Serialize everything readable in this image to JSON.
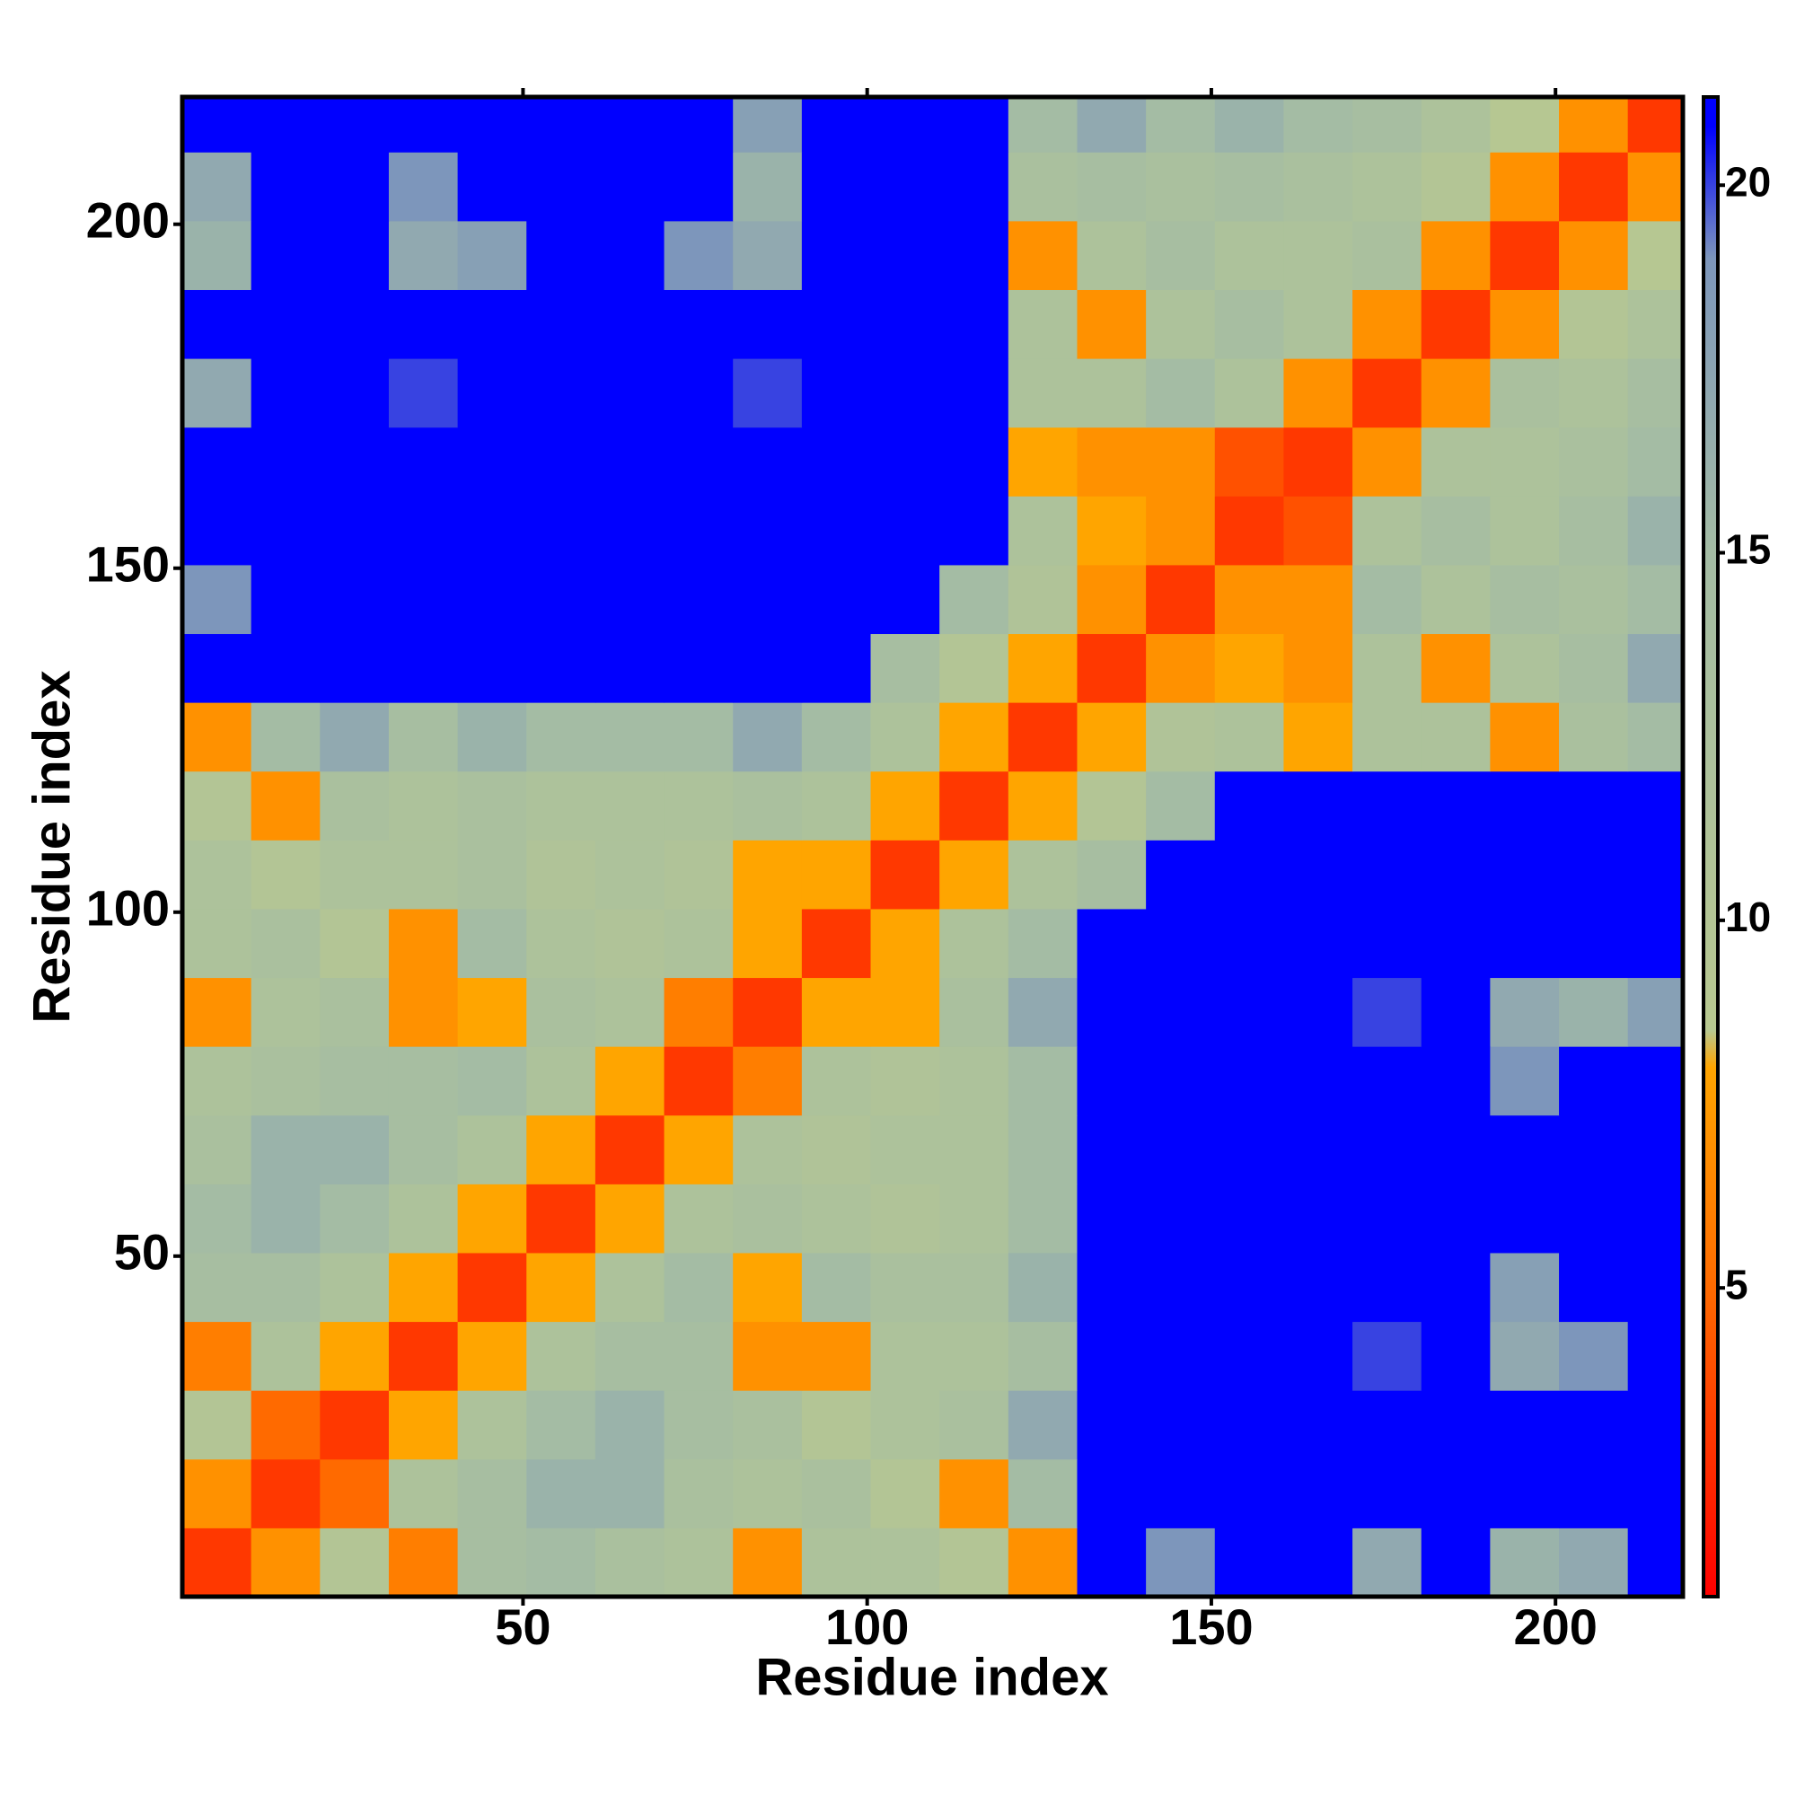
{
  "chart_data": {
    "type": "heatmap",
    "x_label": "Residue index",
    "y_label": "Residue index",
    "x_edges": [
      0.5,
      10.5,
      20.5,
      30.5,
      40.5,
      50.5,
      60.5,
      70.5,
      80.5,
      90.5,
      100.5,
      110.5,
      120.5,
      130.5,
      140.5,
      150.5,
      160.5,
      170.5,
      180.5,
      190.5,
      200.5,
      210.5,
      218.5
    ],
    "y_edges": [
      0.5,
      10.5,
      20.5,
      30.5,
      40.5,
      50.5,
      60.5,
      70.5,
      80.5,
      90.5,
      100.5,
      110.5,
      120.5,
      130.5,
      140.5,
      150.5,
      160.5,
      170.5,
      180.5,
      190.5,
      200.5,
      210.5,
      218.5
    ],
    "z": [
      [
        3,
        7,
        10,
        6,
        14,
        15,
        13,
        12,
        7,
        12,
        12,
        10,
        7,
        21,
        19,
        21,
        21,
        17,
        21,
        16,
        17,
        21
      ],
      [
        7,
        3,
        5,
        12,
        14,
        16,
        16,
        13,
        12,
        13,
        10,
        7,
        15,
        21,
        21,
        21,
        21,
        21,
        21,
        21,
        21,
        21
      ],
      [
        10,
        5,
        3,
        8,
        12,
        15,
        16,
        14,
        13,
        10,
        12,
        13,
        17,
        21,
        21,
        21,
        21,
        21,
        21,
        21,
        21,
        21
      ],
      [
        6,
        12,
        8,
        3,
        8,
        12,
        14,
        14,
        7,
        7,
        12,
        12,
        14,
        21,
        21,
        21,
        21,
        20,
        21,
        17,
        19,
        21
      ],
      [
        14,
        14,
        12,
        8,
        3,
        8,
        12,
        15,
        8,
        15,
        13,
        13,
        16,
        21,
        21,
        21,
        21,
        21,
        21,
        18,
        21,
        21
      ],
      [
        15,
        16,
        15,
        12,
        8,
        3,
        8,
        12,
        13,
        12,
        11,
        12,
        15,
        21,
        21,
        21,
        21,
        21,
        21,
        21,
        21,
        21
      ],
      [
        13,
        16,
        16,
        14,
        12,
        8,
        3,
        8,
        12,
        11,
        12,
        12,
        15,
        21,
        21,
        21,
        21,
        21,
        21,
        21,
        21,
        21
      ],
      [
        12,
        13,
        14,
        14,
        15,
        12,
        8,
        3,
        6,
        12,
        11,
        12,
        15,
        21,
        21,
        21,
        21,
        21,
        21,
        19,
        21,
        21
      ],
      [
        7,
        12,
        13,
        7,
        8,
        13,
        12,
        6,
        3,
        8,
        8,
        13,
        17,
        21,
        21,
        21,
        21,
        20,
        21,
        17,
        16,
        18
      ],
      [
        12,
        13,
        10,
        7,
        15,
        12,
        11,
        12,
        8,
        3,
        8,
        12,
        15,
        21,
        21,
        21,
        21,
        21,
        21,
        21,
        21,
        21
      ],
      [
        12,
        10,
        12,
        12,
        13,
        11,
        12,
        11,
        8,
        8,
        3,
        8,
        12,
        14,
        21,
        21,
        21,
        21,
        21,
        21,
        21,
        21
      ],
      [
        10,
        7,
        13,
        12,
        13,
        12,
        12,
        12,
        13,
        12,
        8,
        3,
        8,
        10,
        15,
        21,
        21,
        21,
        21,
        21,
        21,
        21
      ],
      [
        7,
        15,
        17,
        14,
        16,
        15,
        15,
        15,
        17,
        15,
        12,
        8,
        3,
        8,
        11,
        12,
        8,
        12,
        12,
        7,
        13,
        15
      ],
      [
        21,
        21,
        21,
        21,
        21,
        21,
        21,
        21,
        21,
        21,
        14,
        10,
        8,
        3,
        7,
        8,
        7,
        12,
        7,
        12,
        14,
        17
      ],
      [
        19,
        21,
        21,
        21,
        21,
        21,
        21,
        21,
        21,
        21,
        21,
        15,
        11,
        7,
        3,
        7,
        7,
        15,
        12,
        14,
        13,
        15
      ],
      [
        21,
        21,
        21,
        21,
        21,
        21,
        21,
        21,
        21,
        21,
        21,
        21,
        12,
        8,
        7,
        3,
        4,
        12,
        14,
        12,
        14,
        16
      ],
      [
        21,
        21,
        21,
        21,
        21,
        21,
        21,
        21,
        21,
        21,
        21,
        21,
        8,
        7,
        7,
        4,
        3,
        7,
        12,
        12,
        13,
        15
      ],
      [
        17,
        21,
        21,
        20,
        21,
        21,
        21,
        21,
        20,
        21,
        21,
        21,
        12,
        12,
        15,
        12,
        7,
        3,
        7,
        13,
        12,
        14
      ],
      [
        21,
        21,
        21,
        21,
        21,
        21,
        21,
        21,
        21,
        21,
        21,
        21,
        12,
        7,
        12,
        14,
        12,
        7,
        3,
        7,
        10,
        12
      ],
      [
        16,
        21,
        21,
        17,
        18,
        21,
        21,
        19,
        17,
        21,
        21,
        21,
        7,
        12,
        14,
        12,
        12,
        13,
        7,
        3,
        7,
        9
      ],
      [
        17,
        21,
        21,
        19,
        21,
        21,
        21,
        21,
        16,
        21,
        21,
        21,
        13,
        14,
        13,
        14,
        13,
        12,
        10,
        7,
        3,
        7
      ],
      [
        21,
        21,
        21,
        21,
        21,
        21,
        21,
        21,
        18,
        21,
        21,
        21,
        15,
        17,
        15,
        16,
        15,
        14,
        12,
        9,
        7,
        3
      ]
    ],
    "xlim": [
      0.5,
      218.5
    ],
    "ylim": [
      0.5,
      218.5
    ],
    "xticks": [
      50,
      100,
      150,
      200
    ],
    "yticks": [
      50,
      100,
      150,
      200
    ],
    "colorbar": {
      "zlim": [
        0.8,
        21.2
      ],
      "ticks": [
        5,
        10,
        15,
        20
      ]
    },
    "colorscale": [
      {
        "value": 0.8,
        "color": "#ff0000"
      },
      {
        "value": 5,
        "color": "#ff6a00"
      },
      {
        "value": 8,
        "color": "#ffa500"
      },
      {
        "value": 8.5,
        "color": "#b8c890"
      },
      {
        "value": 15,
        "color": "#a4bca4"
      },
      {
        "value": 19,
        "color": "#7d96bb"
      },
      {
        "value": 20.8,
        "color": "#0000ff"
      },
      {
        "value": 21.2,
        "color": "#0000ff"
      }
    ]
  }
}
